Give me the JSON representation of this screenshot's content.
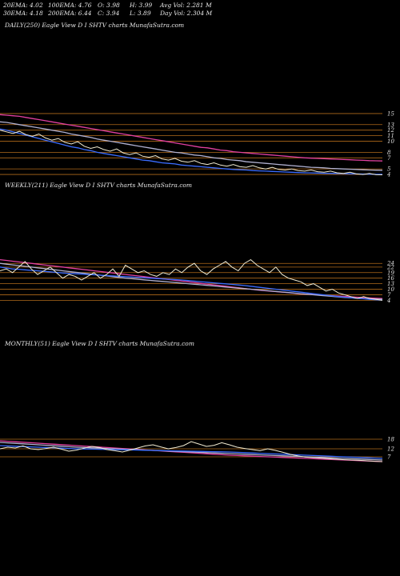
{
  "stats": {
    "ema20": "20EMA: 4.02",
    "ema100": "100EMA: 4.76",
    "open": "O: 3.98",
    "high": "H: 3.99",
    "avg_vol": "Avg Vol: 2.281 M",
    "ema30": "30EMA: 4.18",
    "ema200": "200EMA: 6.44",
    "close": "C: 3.94",
    "low": "L: 3.89",
    "day_vol": "Day Vol: 2.304 M"
  },
  "colors": {
    "price": "#f2ecd2",
    "ema_short": "#3a6cff",
    "ema_mid": "#b0b0d0",
    "ema_long": "#e040a0",
    "level": "#b06a1a"
  },
  "chart_data": [
    {
      "type": "line",
      "title": "DAILY(250) Eagle  View  D  I  SHTV charts MunafaSutra.com",
      "right_ticks": [
        "15",
        "13",
        "12",
        "11",
        "10",
        "8",
        "7",
        "5",
        "4"
      ],
      "series": [
        {
          "values": [
            12.0,
            11.7,
            11.4,
            11.8,
            11.2,
            10.9,
            11.3,
            10.6,
            10.2,
            10.5,
            9.8,
            9.5,
            9.9,
            9.1,
            8.7,
            9.0,
            8.5,
            8.2,
            8.6,
            7.9,
            7.6,
            7.9,
            7.3,
            7.1,
            7.4,
            6.8,
            6.6,
            6.9,
            6.4,
            6.2,
            6.5,
            6.0,
            5.8,
            6.1,
            5.7,
            5.5,
            5.8,
            5.4,
            5.3,
            5.6,
            5.2,
            5.0,
            5.3,
            4.9,
            4.8,
            5.0,
            4.7,
            4.6,
            4.8,
            4.5,
            4.4,
            4.6,
            4.3,
            4.2,
            4.4,
            4.1,
            4.0,
            4.2,
            3.95,
            3.94
          ]
        },
        {
          "values": [
            12.2,
            12.0,
            11.7,
            11.4,
            11.1,
            10.8,
            10.5,
            10.2,
            9.9,
            9.6,
            9.3,
            9.0,
            8.8,
            8.5,
            8.3,
            8.0,
            7.8,
            7.6,
            7.4,
            7.2,
            7.0,
            6.8,
            6.6,
            6.5,
            6.3,
            6.1,
            6.0,
            5.9,
            5.7,
            5.6,
            5.5,
            5.4,
            5.3,
            5.2,
            5.1,
            5.0,
            4.9,
            4.85,
            4.8,
            4.7,
            4.65,
            4.6,
            4.55,
            4.5,
            4.45,
            4.4,
            4.35,
            4.3,
            4.28,
            4.25,
            4.22,
            4.2,
            4.18,
            4.15,
            4.12,
            4.1,
            4.08,
            4.05,
            4.03,
            4.02
          ]
        },
        {
          "values": [
            13.5,
            13.4,
            13.2,
            13.0,
            12.8,
            12.6,
            12.4,
            12.2,
            12.0,
            11.8,
            11.6,
            11.3,
            11.1,
            10.9,
            10.7,
            10.4,
            10.2,
            10.0,
            9.8,
            9.6,
            9.4,
            9.2,
            9.0,
            8.8,
            8.6,
            8.4,
            8.2,
            8.0,
            7.9,
            7.7,
            7.5,
            7.4,
            7.2,
            7.0,
            6.9,
            6.7,
            6.6,
            6.5,
            6.3,
            6.2,
            6.1,
            6.0,
            5.9,
            5.8,
            5.7,
            5.6,
            5.5,
            5.4,
            5.3,
            5.25,
            5.2,
            5.1,
            5.05,
            5.0,
            4.95,
            4.9,
            4.85,
            4.8,
            4.78,
            4.76
          ]
        },
        {
          "values": [
            14.8,
            14.7,
            14.6,
            14.5,
            14.3,
            14.1,
            13.9,
            13.7,
            13.5,
            13.3,
            13.1,
            12.9,
            12.7,
            12.5,
            12.3,
            12.1,
            11.9,
            11.7,
            11.5,
            11.3,
            11.1,
            10.9,
            10.7,
            10.5,
            10.3,
            10.1,
            9.9,
            9.7,
            9.5,
            9.3,
            9.1,
            8.9,
            8.8,
            8.6,
            8.4,
            8.3,
            8.1,
            8.0,
            7.9,
            7.8,
            7.7,
            7.6,
            7.5,
            7.4,
            7.3,
            7.2,
            7.1,
            7.0,
            6.95,
            6.9,
            6.85,
            6.8,
            6.75,
            6.7,
            6.65,
            6.6,
            6.55,
            6.5,
            6.47,
            6.44
          ]
        }
      ],
      "levels": [
        15,
        13,
        12,
        11,
        10,
        8,
        7,
        5,
        4
      ],
      "ylim": [
        3,
        16
      ]
    },
    {
      "type": "line",
      "title": "WEEKLY(211) Eagle  View  D  I  SHTV charts MunafaSutra.com",
      "right_ticks": [
        "24",
        "22",
        "19",
        "16",
        "13",
        "10",
        "7",
        "4"
      ],
      "series": [
        {
          "values": [
            20,
            21,
            19,
            22,
            25,
            21,
            18,
            20,
            22,
            19,
            16,
            18,
            17,
            15,
            17,
            19,
            16,
            18,
            21,
            17,
            23,
            21,
            19,
            20,
            18,
            17,
            19,
            18,
            21,
            19,
            22,
            24,
            20,
            18,
            21,
            23,
            25,
            22,
            20,
            24,
            26,
            23,
            21,
            19,
            22,
            18,
            16,
            15,
            14,
            12,
            13,
            11,
            9,
            10,
            8,
            7,
            6,
            5,
            6,
            5,
            4.5,
            4
          ]
        },
        {
          "values": [
            22,
            21.5,
            21,
            20.8,
            20.5,
            20.2,
            20,
            19.7,
            19.4,
            19.1,
            18.8,
            18.6,
            18.4,
            18.2,
            18,
            17.8,
            17.6,
            17.4,
            17.2,
            17,
            16.8,
            16.6,
            16.4,
            16.2,
            16,
            15.8,
            15.6,
            15.4,
            15.2,
            15,
            14.7,
            14.4,
            14.1,
            13.8,
            13.5,
            13.2,
            12.9,
            12.6,
            12.3,
            12,
            11.6,
            11.2,
            10.8,
            10.4,
            10,
            9.6,
            9.2,
            8.8,
            8.4,
            8,
            7.6,
            7.2,
            6.8,
            6.4,
            6,
            5.7,
            5.4,
            5.1,
            4.8,
            4.5,
            4.3,
            4.1
          ]
        },
        {
          "values": [
            24,
            23.6,
            23.2,
            22.8,
            22.4,
            22,
            21.6,
            21.2,
            20.8,
            20.4,
            20,
            19.6,
            19.2,
            18.8,
            18.4,
            18,
            17.6,
            17.2,
            16.8,
            16.4,
            16,
            15.7,
            15.4,
            15.1,
            14.8,
            14.5,
            14.2,
            13.9,
            13.6,
            13.3,
            13,
            12.7,
            12.4,
            12.1,
            11.8,
            11.5,
            11.2,
            10.9,
            10.6,
            10.3,
            10,
            9.7,
            9.4,
            9.1,
            8.8,
            8.5,
            8.2,
            7.9,
            7.6,
            7.3,
            7,
            6.7,
            6.4,
            6.1,
            5.8,
            5.5,
            5.3,
            5.1,
            4.9,
            4.8,
            4.7,
            4.6
          ]
        },
        {
          "values": [
            26,
            25.6,
            25.2,
            24.8,
            24.4,
            24,
            23.6,
            23.2,
            22.8,
            22.4,
            22,
            21.6,
            21.2,
            20.8,
            20.4,
            20,
            19.6,
            19.2,
            18.8,
            18.4,
            18,
            17.6,
            17.2,
            16.8,
            16.4,
            16,
            15.6,
            15.2,
            14.8,
            14.4,
            14,
            13.6,
            13.2,
            12.8,
            12.4,
            12,
            11.6,
            11.2,
            10.8,
            10.4,
            10,
            9.6,
            9.3,
            9,
            8.7,
            8.4,
            8.1,
            7.8,
            7.5,
            7.3,
            7.1,
            6.9,
            6.7,
            6.5,
            6.3,
            6.1,
            5.9,
            5.7,
            5.5,
            5.3,
            5.1,
            5
          ]
        }
      ],
      "levels": [
        24,
        22,
        19,
        16,
        13,
        10,
        7,
        4
      ],
      "ylim": [
        2,
        28
      ]
    },
    {
      "type": "line",
      "title": "MONTHLY(51) Eagle  View  D  I  SHTV charts MunafaSutra.com",
      "right_ticks": [
        "18",
        "12",
        "7"
      ],
      "series": [
        {
          "values": [
            12,
            13,
            12.5,
            13.8,
            12,
            11.5,
            12.2,
            13,
            11.8,
            10.5,
            11.2,
            12.4,
            13.5,
            12.8,
            11.5,
            10.8,
            10,
            11.2,
            12.5,
            13.8,
            14.5,
            13.2,
            12,
            12.8,
            14,
            16.5,
            15,
            13.5,
            14.2,
            15.8,
            14.5,
            13,
            12.2,
            11.5,
            10.8,
            12,
            11,
            9.8,
            8.5,
            7.5,
            6.8,
            6.5,
            6.2,
            5.8,
            5.5,
            5.2,
            5,
            4.8,
            4.5,
            4.2,
            4
          ]
        },
        {
          "values": [
            14,
            13.8,
            13.6,
            13.4,
            13.2,
            13,
            12.8,
            12.6,
            12.4,
            12.2,
            12,
            11.9,
            11.8,
            11.7,
            11.6,
            11.5,
            11.4,
            11.3,
            11.2,
            11.1,
            11,
            10.9,
            10.8,
            10.7,
            10.6,
            10.5,
            10.4,
            10.3,
            10.2,
            10.1,
            10,
            9.8,
            9.6,
            9.4,
            9.2,
            9,
            8.8,
            8.6,
            8.4,
            8.2,
            8,
            7.8,
            7.6,
            7.4,
            7.2,
            7,
            6.8,
            6.6,
            6.4,
            6.2,
            6
          ]
        },
        {
          "values": [
            16,
            15.7,
            15.4,
            15.1,
            14.8,
            14.5,
            14.2,
            13.9,
            13.6,
            13.3,
            13,
            12.8,
            12.6,
            12.4,
            12.2,
            12,
            11.8,
            11.6,
            11.4,
            11.2,
            11,
            10.8,
            10.6,
            10.4,
            10.2,
            10,
            9.8,
            9.6,
            9.4,
            9.2,
            9,
            8.8,
            8.6,
            8.4,
            8.2,
            8,
            7.8,
            7.6,
            7.4,
            7.2,
            7,
            6.8,
            6.6,
            6.4,
            6.2,
            6,
            5.8,
            5.6,
            5.4,
            5.2,
            5
          ]
        },
        {
          "values": [
            17,
            16.7,
            16.4,
            16.1,
            15.8,
            15.5,
            15.2,
            14.9,
            14.6,
            14.3,
            14,
            13.7,
            13.4,
            13.1,
            12.8,
            12.5,
            12.2,
            11.9,
            11.6,
            11.3,
            11,
            10.7,
            10.4,
            10.1,
            9.8,
            9.5,
            9.2,
            8.9,
            8.6,
            8.3,
            8,
            7.8,
            7.6,
            7.4,
            7.2,
            7,
            6.8,
            6.6,
            6.4,
            6.2,
            6,
            5.8,
            5.6,
            5.4,
            5.2,
            5,
            4.8,
            4.6,
            4.4,
            4.2,
            4
          ]
        }
      ],
      "levels": [
        18,
        12,
        7
      ],
      "ylim": [
        0,
        30
      ]
    }
  ]
}
